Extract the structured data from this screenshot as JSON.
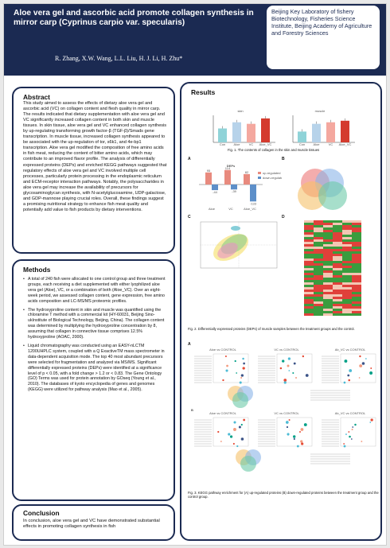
{
  "header": {
    "title": "Aloe vera gel and ascorbic acid promote collagen synthesis in mirror carp (Cyprinus carpio var. specularis)",
    "authors": "R. Zhang, X.W. Wang, L.L. Liu, H. J. Li, H. Zhu*",
    "affiliation": "Beijing Key Laboratory of fishery Biotechnology, Fisheries Science Institute, Beijing Academy of Agriculture and Forestry Sciences"
  },
  "abstract": {
    "heading": "Abstract",
    "text": "This study aimed to assess the effects of dietary aloe vera gel and ascorbic acid (VC) on collagen content and flesh quality in mirror carp. The results indicated that dietary supplementation with aloe vera gel and VC significantly increased collagen content in both skin and muscle tissues. In skin tissue, aloe vera gel and VC enhanced collagen synthesis by up-regulating transforming growth factor-β (TGF-β)/Smads gene transcription. In muscle tissue, increased collagen synthesis appeared to be associated with the up-regulation of tor, s6k1, and 4e-bp1 transcription. Aloe vera gel modified the composition of free amino acids in fish meat, reducing the content of bitter amino acids, which may contribute to an improved flavor profile. The analysis of differentially expressed proteins (DEPs) and enriched KEGG pathways suggested that regulatory effects of aloe vera gel and VC involved multiple cell processes, particularly protein processing in the endoplasmic reticulum and ECM-receptor interaction pathways. Notably, the polysaccharides in aloe vera gel may increase the availability of precursors for glycosaminoglycan synthesis, with N-acetylglucosamine, UDP-galactose, and GDP-mannose playing crucial roles. Overall, these findings suggest a promising nutritional strategy to enhance fish meat quality and potentially add value to fish products by dietary interventions."
  },
  "methods": {
    "heading": "Methods",
    "items": [
      "A total of 240 fish were allocated to one control group and three treatment groups, each receiving a diet supplemented with either lyophilized aloe vera gel (Aloe), VC, or a combination of both (Aloe_VC). Over an eight-week period, we assessed collagen content, gene expression, free amino acids composition and LC-MS/MS proteomic profiles.",
      "The hydroxyproline content in skin and muscle was quantified using the chloramine T method with a commercial kit (HY-60031, Beijing Sino-ukInstitute of Biological Technology, Beijing, China). The collagen content was determined by multiplying the hydroxyproline concentration by 8, assuming that collagen in connective tissue comprises 12.5% hydroxyproline (AOAC, 2000).",
      "Liquid chromatography was conducted using an EASY-nLCTM 1200UHPLC system, coupled with a Q ExactiveTM mass spectrometer in data-dependent acquisition mode. The top 40 most abundant precursors were selected for fragmentation and analyzed via MS/MS. Significant differentially expressed proteins (DEPs) were identified at a significance level of p < 0.05, with a fold change > 1.2 or < 0.83. The Gene Ontology (GO) Terms was used for protein annotation by GOseq (Young et al., 2010). The databases of kyoto encyclopedia of genes and genomes (KEGG) were utilized for pathway analysis (Mao et al., 2005)."
    ]
  },
  "conclusion": {
    "heading": "Conclusion",
    "text": "In conclusion, aloe vera gel and VC have demonstrated substantial effects in promoting collagen synthesis in fish"
  },
  "results": {
    "heading": "Results",
    "fig1": {
      "caption": "Fig. 1. The contents of collagen in the skin and muscle tissues",
      "panels": [
        {
          "label": "skin",
          "categories": [
            "Con",
            "Aloe",
            "VC",
            "Aloe_VC"
          ],
          "values": [
            18,
            26,
            24,
            31
          ],
          "colors": [
            "#8fd3d8",
            "#b7d3ea",
            "#f4a89f",
            "#d43b2e"
          ]
        },
        {
          "label": "muscle",
          "categories": [
            "Con",
            "Aloe",
            "VC",
            "Aloe_VC"
          ],
          "values": [
            14,
            24,
            26,
            28
          ],
          "colors": [
            "#8fd3d8",
            "#b7d3ea",
            "#f4a89f",
            "#d43b2e"
          ]
        }
      ]
    },
    "fig2": {
      "caption": "Fig. 2. Differentially expressed proteins (DEPs) of muscle samples between the treatment groups and the control.",
      "panel_a": {
        "letter": "A",
        "title": "DEPs",
        "legend": [
          "up-regulated",
          "down-regulated"
        ],
        "categories": [
          "Aloe",
          "VC",
          "Aloe_VC"
        ],
        "up": [
          95,
          114,
          82
        ],
        "down": [
          -44,
          -39,
          -133
        ]
      },
      "panel_b_letter": "B",
      "panel_c_letter": "C",
      "panel_d_letter": "D"
    },
    "fig3": {
      "caption": "Fig. 3. KEGG pathway enrichment for (A) up-regulated proteins (B) down-regulated proteins between the treatment group and the control group.",
      "letters": [
        "A",
        "B"
      ],
      "titles_row1": [
        "Aloe vs CONTROL",
        "VC vs CONTROL",
        "Ab_VC vs CONTROL"
      ],
      "titles_row2": [
        "Aloe vs CONTROL",
        "VC vs CONTROL",
        "Ab_VC vs CONTROL"
      ]
    }
  }
}
